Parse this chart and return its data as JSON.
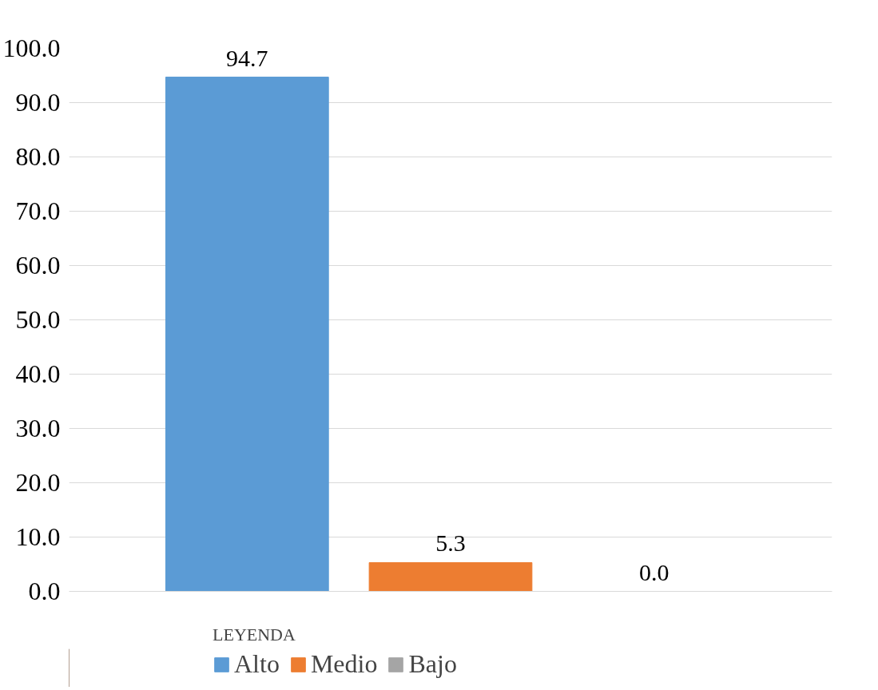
{
  "chart_data": {
    "type": "bar",
    "categories": [
      null
    ],
    "series": [
      {
        "name": "Alto",
        "color": "#5b9bd5",
        "values": [
          94.7
        ],
        "value_labels": [
          "94.7"
        ]
      },
      {
        "name": "Medio",
        "color": "#ed7d31",
        "values": [
          5.3
        ],
        "value_labels": [
          "5.3"
        ]
      },
      {
        "name": "Bajo",
        "color": "#a5a5a5",
        "values": [
          0.0
        ],
        "value_labels": [
          "0.0"
        ]
      }
    ],
    "ylim": [
      0,
      100
    ],
    "yticks": [
      {
        "value": 0,
        "label": "0.0"
      },
      {
        "value": 10,
        "label": "10.0"
      },
      {
        "value": 20,
        "label": "20.0"
      },
      {
        "value": 30,
        "label": "30.0"
      },
      {
        "value": 40,
        "label": "40.0"
      },
      {
        "value": 50,
        "label": "50.0"
      },
      {
        "value": 60,
        "label": "60.0"
      },
      {
        "value": 70,
        "label": "70.0"
      },
      {
        "value": 80,
        "label": "80.0"
      },
      {
        "value": 90,
        "label": "90.0"
      },
      {
        "value": 100,
        "label": "100.0"
      }
    ],
    "grid": "y",
    "legend": "bottom",
    "legend_title": "LEYENDA"
  }
}
